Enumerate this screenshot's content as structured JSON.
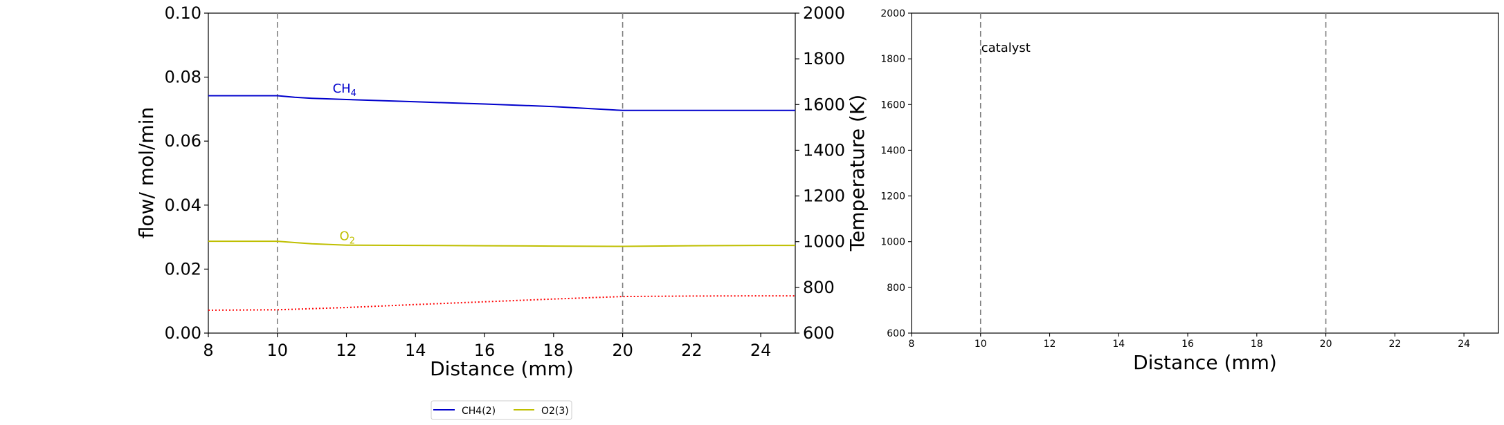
{
  "chart_data": [
    {
      "type": "line",
      "xlabel": "Distance (mm)",
      "ylabel": "flow/ mol/min",
      "y2label": "Temperature (K)",
      "xlim": [
        8,
        25
      ],
      "ylim": [
        0.0,
        0.1
      ],
      "y2lim": [
        600,
        2000
      ],
      "xticks": [
        "8",
        "10",
        "12",
        "14",
        "16",
        "18",
        "20",
        "22",
        "24"
      ],
      "yticks": [
        "0.00",
        "0.02",
        "0.04",
        "0.06",
        "0.08",
        "0.10"
      ],
      "y2ticks": [
        "600",
        "800",
        "1000",
        "1200",
        "1400",
        "1600",
        "1800",
        "2000"
      ],
      "grid": false,
      "vlines": [
        10,
        20
      ],
      "series": [
        {
          "name": "CH4(2)",
          "label_base": "CH",
          "label_sub": "4",
          "label_at": [
            11.6,
            0.0752
          ],
          "color": "#0000cc",
          "style": "solid",
          "axis": "left",
          "x": [
            8,
            10,
            10.5,
            11,
            12,
            14,
            16,
            18,
            19,
            20,
            22,
            24,
            25
          ],
          "y": [
            0.0742,
            0.0742,
            0.0737,
            0.0734,
            0.073,
            0.0723,
            0.0716,
            0.0708,
            0.0702,
            0.0696,
            0.0696,
            0.0696,
            0.0696
          ]
        },
        {
          "name": "O2(3)",
          "label_base": "O",
          "label_sub": "2",
          "label_at": [
            11.8,
            0.0291
          ],
          "color": "#bfbf00",
          "style": "solid",
          "axis": "left",
          "x": [
            8,
            10,
            10.5,
            11,
            12,
            14,
            16,
            18,
            20,
            22,
            24,
            25
          ],
          "y": [
            0.0287,
            0.0287,
            0.0283,
            0.0279,
            0.0275,
            0.0274,
            0.0273,
            0.0272,
            0.0271,
            0.0273,
            0.0274,
            0.0274
          ]
        },
        {
          "color": "#ff0000",
          "style": "dotted",
          "axis": "right",
          "x": [
            8,
            10,
            12,
            14,
            16,
            18,
            20,
            22,
            24,
            25
          ],
          "y": [
            700,
            702,
            712,
            725,
            737,
            749,
            760,
            762,
            763,
            763
          ]
        }
      ],
      "legend": {
        "placement": "bottom",
        "entries": [
          {
            "label": "CH4(2)",
            "color": "#0000cc"
          },
          {
            "label": "O2(3)",
            "color": "#bfbf00"
          }
        ]
      }
    },
    {
      "type": "line",
      "xlabel": "Distance (mm)",
      "xlim": [
        8,
        25
      ],
      "ylim": [
        600,
        2000
      ],
      "xticks": [
        "8",
        "10",
        "12",
        "14",
        "16",
        "18",
        "20",
        "22",
        "24"
      ],
      "yticks": [
        "600",
        "800",
        "1000",
        "1200",
        "1400",
        "1600",
        "1800",
        "2000"
      ],
      "grid": false,
      "vlines": [
        10,
        20
      ],
      "annotation": {
        "text": "catalyst",
        "at": [
          10,
          1830
        ]
      },
      "series": []
    }
  ]
}
